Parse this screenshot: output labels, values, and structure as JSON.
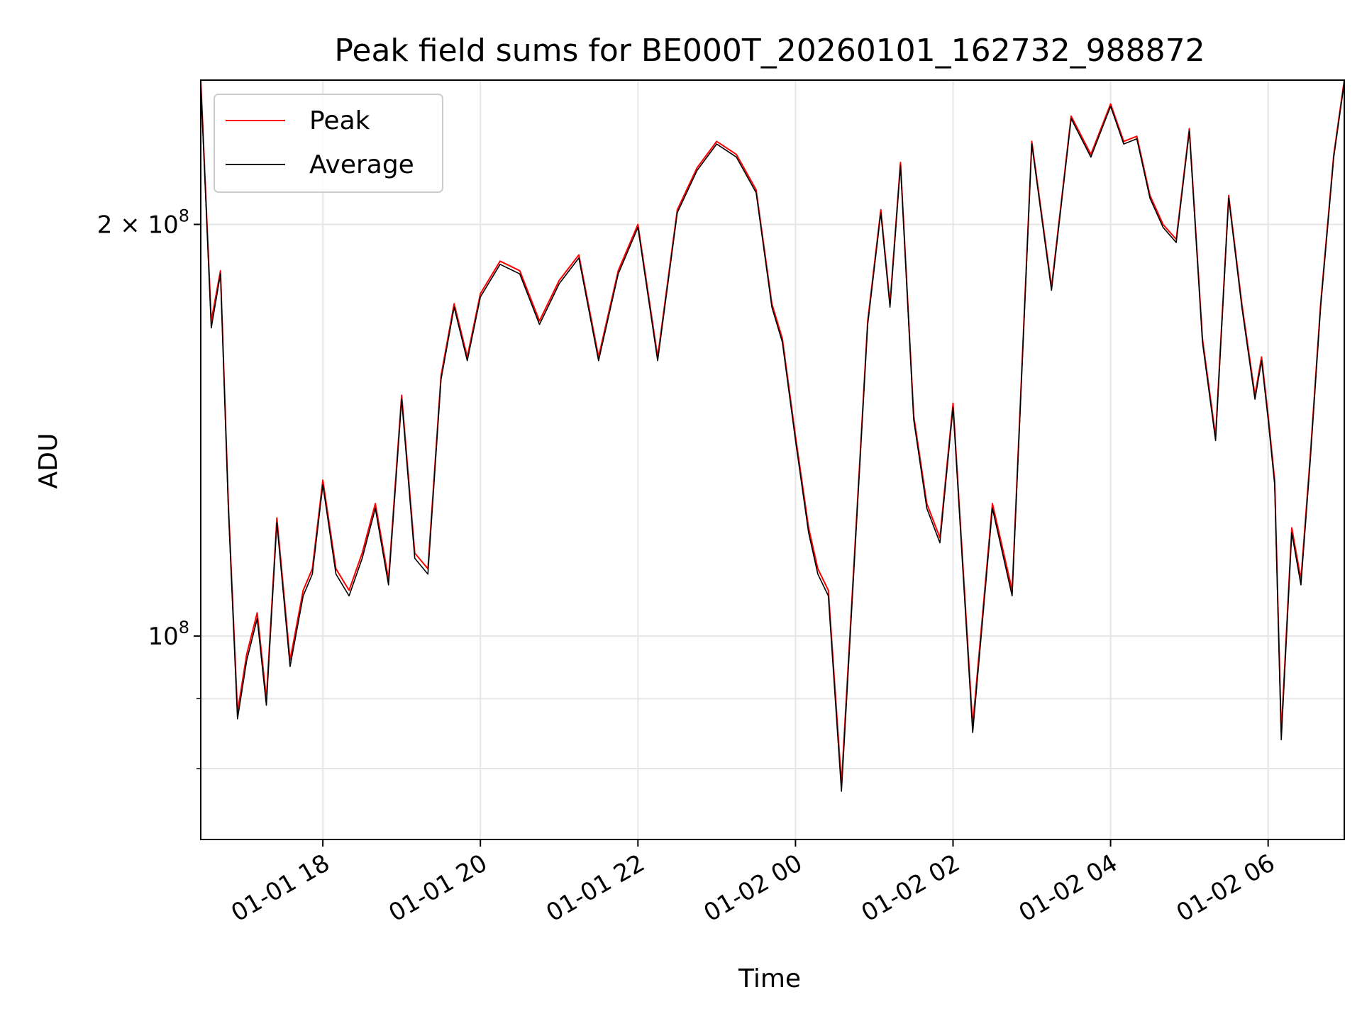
{
  "chart_data": {
    "type": "line",
    "title": "Peak field sums for BE000T_20260101_162732_988872",
    "xlabel": "Time",
    "ylabel": "ADU",
    "yscale": "log",
    "grid": true,
    "legend_position": "top-left",
    "xlim": [
      "2026-01-01 16:27",
      "2026-01-02 06:58"
    ],
    "ylim": [
      71000000,
      255000000
    ],
    "x_ticks": [
      {
        "value": "2026-01-01 18:00",
        "label": "01-01 18"
      },
      {
        "value": "2026-01-01 20:00",
        "label": "01-01 20"
      },
      {
        "value": "2026-01-01 22:00",
        "label": "01-01 22"
      },
      {
        "value": "2026-01-02 00:00",
        "label": "01-02 00"
      },
      {
        "value": "2026-01-02 02:00",
        "label": "01-02 02"
      },
      {
        "value": "2026-01-02 04:00",
        "label": "01-02 04"
      },
      {
        "value": "2026-01-02 06:00",
        "label": "01-02 06"
      }
    ],
    "y_major_ticks": [
      {
        "value": 100000000,
        "label_base": "10",
        "label_exp": "8",
        "label_mult": ""
      },
      {
        "value": 200000000,
        "label_base": "10",
        "label_exp": "8",
        "label_mult": "2 × "
      }
    ],
    "y_minor_ticks": [
      80000000,
      90000000
    ],
    "series": [
      {
        "name": "Peak",
        "color": "#ff0000",
        "x": [
          "2026-01-01 16:27",
          "2026-01-01 16:35",
          "2026-01-01 16:42",
          "2026-01-01 16:48",
          "2026-01-01 16:55",
          "2026-01-01 17:02",
          "2026-01-01 17:10",
          "2026-01-01 17:17",
          "2026-01-01 17:25",
          "2026-01-01 17:35",
          "2026-01-01 17:45",
          "2026-01-01 17:52",
          "2026-01-01 18:00",
          "2026-01-01 18:10",
          "2026-01-01 18:20",
          "2026-01-01 18:30",
          "2026-01-01 18:40",
          "2026-01-01 18:50",
          "2026-01-01 19:00",
          "2026-01-01 19:10",
          "2026-01-01 19:20",
          "2026-01-01 19:30",
          "2026-01-01 19:40",
          "2026-01-01 19:50",
          "2026-01-01 20:00",
          "2026-01-01 20:15",
          "2026-01-01 20:30",
          "2026-01-01 20:45",
          "2026-01-01 21:00",
          "2026-01-01 21:15",
          "2026-01-01 21:30",
          "2026-01-01 21:45",
          "2026-01-01 22:00",
          "2026-01-01 22:15",
          "2026-01-01 22:30",
          "2026-01-01 22:45",
          "2026-01-01 23:00",
          "2026-01-01 23:15",
          "2026-01-01 23:30",
          "2026-01-01 23:42",
          "2026-01-01 23:50",
          "2026-01-02 00:00",
          "2026-01-02 00:10",
          "2026-01-02 00:17",
          "2026-01-02 00:25",
          "2026-01-02 00:35",
          "2026-01-02 00:45",
          "2026-01-02 00:55",
          "2026-01-02 01:05",
          "2026-01-02 01:12",
          "2026-01-02 01:20",
          "2026-01-02 01:30",
          "2026-01-02 01:40",
          "2026-01-02 01:50",
          "2026-01-02 02:00",
          "2026-01-02 02:15",
          "2026-01-02 02:30",
          "2026-01-02 02:45",
          "2026-01-02 03:00",
          "2026-01-02 03:15",
          "2026-01-02 03:30",
          "2026-01-02 03:45",
          "2026-01-02 04:00",
          "2026-01-02 04:10",
          "2026-01-02 04:20",
          "2026-01-02 04:30",
          "2026-01-02 04:40",
          "2026-01-02 04:50",
          "2026-01-02 05:00",
          "2026-01-02 05:10",
          "2026-01-02 05:20",
          "2026-01-02 05:30",
          "2026-01-02 05:40",
          "2026-01-02 05:50",
          "2026-01-02 05:55",
          "2026-01-02 06:00",
          "2026-01-02 06:05",
          "2026-01-02 06:10",
          "2026-01-02 06:18",
          "2026-01-02 06:25",
          "2026-01-02 06:32",
          "2026-01-02 06:40",
          "2026-01-02 06:50",
          "2026-01-02 06:58"
        ],
        "values": [
          255000000,
          170000000,
          185000000,
          125000000,
          88000000,
          97000000,
          104000000,
          90000000,
          122000000,
          96000000,
          108000000,
          112000000,
          130000000,
          112000000,
          108000000,
          115000000,
          125000000,
          110000000,
          150000000,
          115000000,
          112000000,
          155000000,
          175000000,
          160000000,
          178000000,
          188000000,
          185000000,
          170000000,
          182000000,
          190000000,
          160000000,
          185000000,
          200000000,
          160000000,
          205000000,
          220000000,
          230000000,
          225000000,
          212000000,
          175000000,
          165000000,
          140000000,
          120000000,
          112000000,
          108000000,
          78000000,
          115000000,
          170000000,
          205000000,
          175000000,
          222000000,
          145000000,
          125000000,
          118000000,
          148000000,
          86000000,
          125000000,
          108000000,
          230000000,
          180000000,
          240000000,
          225000000,
          245000000,
          230000000,
          232000000,
          210000000,
          200000000,
          195000000,
          235000000,
          165000000,
          140000000,
          210000000,
          175000000,
          150000000,
          160000000,
          145000000,
          130000000,
          85000000,
          120000000,
          110000000,
          135000000,
          175000000,
          225000000,
          255000000
        ]
      },
      {
        "name": "Average",
        "color": "#000000",
        "x": [
          "2026-01-01 16:27",
          "2026-01-01 16:35",
          "2026-01-01 16:42",
          "2026-01-01 16:48",
          "2026-01-01 16:55",
          "2026-01-01 17:02",
          "2026-01-01 17:10",
          "2026-01-01 17:17",
          "2026-01-01 17:25",
          "2026-01-01 17:35",
          "2026-01-01 17:45",
          "2026-01-01 17:52",
          "2026-01-01 18:00",
          "2026-01-01 18:10",
          "2026-01-01 18:20",
          "2026-01-01 18:30",
          "2026-01-01 18:40",
          "2026-01-01 18:50",
          "2026-01-01 19:00",
          "2026-01-01 19:10",
          "2026-01-01 19:20",
          "2026-01-01 19:30",
          "2026-01-01 19:40",
          "2026-01-01 19:50",
          "2026-01-01 20:00",
          "2026-01-01 20:15",
          "2026-01-01 20:30",
          "2026-01-01 20:45",
          "2026-01-01 21:00",
          "2026-01-01 21:15",
          "2026-01-01 21:30",
          "2026-01-01 21:45",
          "2026-01-01 22:00",
          "2026-01-01 22:15",
          "2026-01-01 22:30",
          "2026-01-01 22:45",
          "2026-01-01 23:00",
          "2026-01-01 23:15",
          "2026-01-01 23:30",
          "2026-01-01 23:42",
          "2026-01-01 23:50",
          "2026-01-02 00:00",
          "2026-01-02 00:10",
          "2026-01-02 00:17",
          "2026-01-02 00:25",
          "2026-01-02 00:35",
          "2026-01-02 00:45",
          "2026-01-02 00:55",
          "2026-01-02 01:05",
          "2026-01-02 01:12",
          "2026-01-02 01:20",
          "2026-01-02 01:30",
          "2026-01-02 01:40",
          "2026-01-02 01:50",
          "2026-01-02 02:00",
          "2026-01-02 02:15",
          "2026-01-02 02:30",
          "2026-01-02 02:45",
          "2026-01-02 03:00",
          "2026-01-02 03:15",
          "2026-01-02 03:30",
          "2026-01-02 03:45",
          "2026-01-02 04:00",
          "2026-01-02 04:10",
          "2026-01-02 04:20",
          "2026-01-02 04:30",
          "2026-01-02 04:40",
          "2026-01-02 04:50",
          "2026-01-02 05:00",
          "2026-01-02 05:10",
          "2026-01-02 05:20",
          "2026-01-02 05:30",
          "2026-01-02 05:40",
          "2026-01-02 05:50",
          "2026-01-02 05:55",
          "2026-01-02 06:00",
          "2026-01-02 06:05",
          "2026-01-02 06:10",
          "2026-01-02 06:18",
          "2026-01-02 06:25",
          "2026-01-02 06:32",
          "2026-01-02 06:40",
          "2026-01-02 06:50",
          "2026-01-02 06:58"
        ],
        "values": [
          254000000,
          168000000,
          184000000,
          124000000,
          87000000,
          96000000,
          103000000,
          89000000,
          121000000,
          95000000,
          107000000,
          111000000,
          129000000,
          111000000,
          107000000,
          114000000,
          124000000,
          109000000,
          149000000,
          114000000,
          111000000,
          154000000,
          174000000,
          159000000,
          177000000,
          187000000,
          184000000,
          169000000,
          181000000,
          189000000,
          159000000,
          184000000,
          199000000,
          159000000,
          204000000,
          219000000,
          229000000,
          224000000,
          211000000,
          174000000,
          164000000,
          139000000,
          119000000,
          111000000,
          107000000,
          77000000,
          114000000,
          169000000,
          204000000,
          174000000,
          221000000,
          144000000,
          124000000,
          117000000,
          147000000,
          85000000,
          124000000,
          107000000,
          229000000,
          179000000,
          239000000,
          224000000,
          244000000,
          229000000,
          231000000,
          209000000,
          199000000,
          194000000,
          234000000,
          164000000,
          139000000,
          209000000,
          174000000,
          149000000,
          159000000,
          144000000,
          129000000,
          84000000,
          119000000,
          109000000,
          134000000,
          174000000,
          224000000,
          254000000
        ]
      }
    ]
  }
}
